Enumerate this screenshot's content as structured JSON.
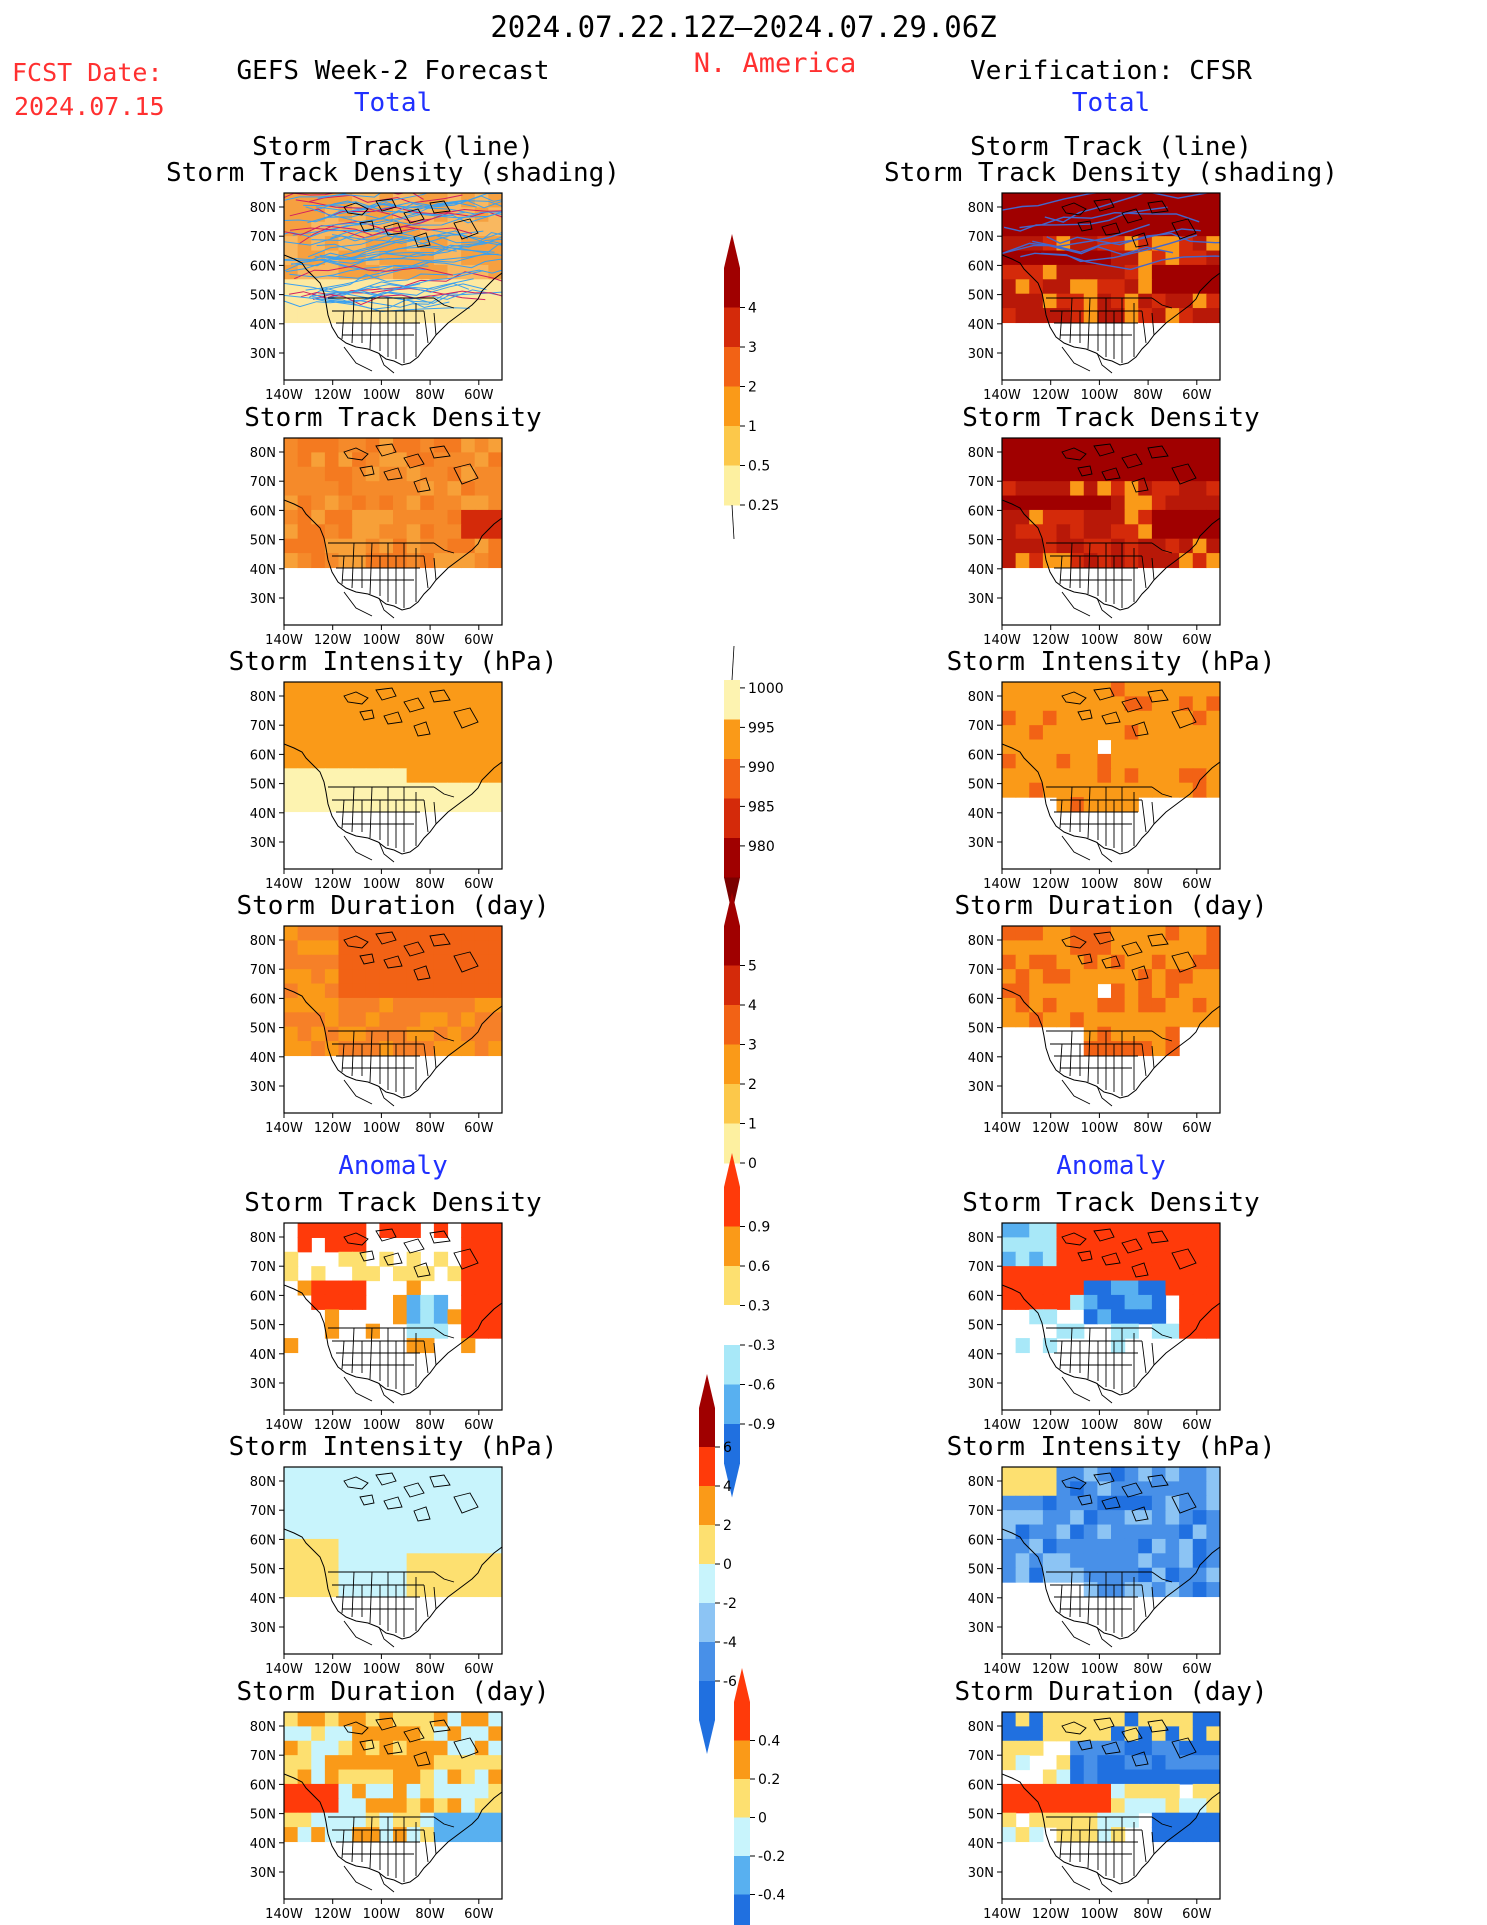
{
  "header": {
    "date_range": "2024.07.22.12Z–2024.07.29.06Z",
    "region": "N. America",
    "fcst_label": "FCST Date:",
    "fcst_date": "2024.07.15",
    "left_title": "GEFS Week-2 Forecast",
    "right_title": "Verification: CFSR",
    "left_section": "Total",
    "right_section": "Total",
    "anomaly_left": "Anomaly",
    "anomaly_right": "Anomaly"
  },
  "axes": {
    "lat_labels": [
      "80N",
      "70N",
      "60N",
      "50N",
      "40N",
      "30N"
    ],
    "lon_labels": [
      "140W",
      "120W",
      "100W",
      "80W",
      "60W"
    ]
  },
  "panels_titles": {
    "track_line": "Storm Track (line)",
    "track_shading": "Storm Track Density (shading)",
    "density": "Storm Track Density",
    "intensity": "Storm Intensity (hPa)",
    "duration": "Storm Duration (day)"
  },
  "colorbars": {
    "density_total": {
      "labels": [
        "4",
        "3",
        "2",
        "1",
        "0.5",
        "0.25"
      ],
      "colors": [
        "#a00000",
        "#d42a0a",
        "#f26215",
        "#fa9a18",
        "#fcc84a",
        "#fdf0a0"
      ]
    },
    "intensity_total": {
      "labels": [
        "1000",
        "995",
        "990",
        "985",
        "980"
      ],
      "colors": [
        "#fdf3b0",
        "#fa9a18",
        "#f26215",
        "#d42a0a",
        "#a00000"
      ]
    },
    "duration_total": {
      "labels": [
        "5",
        "4",
        "3",
        "2",
        "1",
        "0"
      ],
      "colors": [
        "#a00000",
        "#d42a0a",
        "#f26215",
        "#fa9a18",
        "#fcc84a",
        "#fdf0a0"
      ]
    },
    "density_anom": {
      "labels": [
        "0.9",
        "0.6",
        "0.3",
        "-0.3",
        "-0.6",
        "-0.9"
      ],
      "colors": [
        "#ff3a0a",
        "#fa9a18",
        "#fde070",
        "#ffffff",
        "#a8e8f8",
        "#58b0f0",
        "#2070e0"
      ]
    },
    "intensity_anom": {
      "labels": [
        "6",
        "4",
        "2",
        "0",
        "-2",
        "-4",
        "-6"
      ],
      "colors": [
        "#a00000",
        "#ff3a0a",
        "#fa9a18",
        "#fde070",
        "#c8f4fc",
        "#8cc4f4",
        "#4890e8",
        "#2070e0"
      ]
    },
    "duration_anom": {
      "labels": [
        "0.4",
        "0.2",
        "0",
        "-0.2",
        "-0.4"
      ],
      "colors": [
        "#ff3a0a",
        "#fa9a18",
        "#fde070",
        "#c8f4fc",
        "#58b0f0",
        "#2070e0"
      ]
    }
  }
}
